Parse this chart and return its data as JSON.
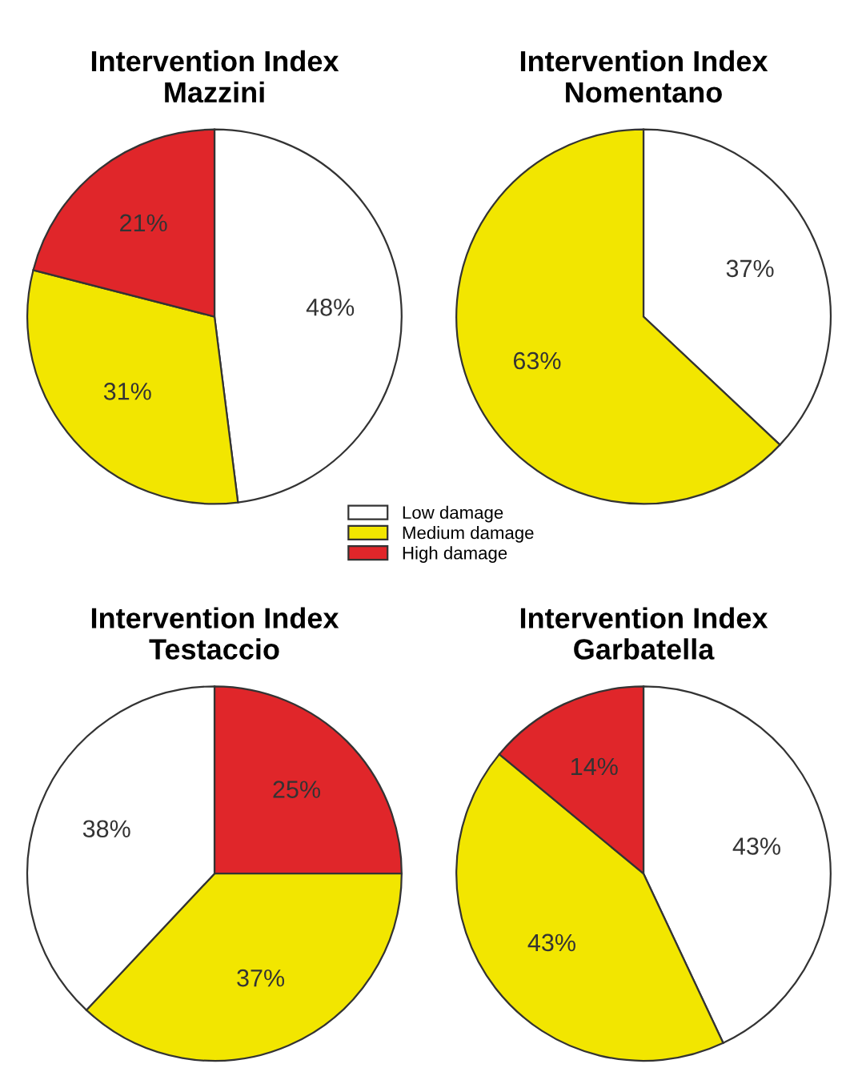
{
  "chart_data": [
    {
      "type": "pie",
      "title": "Intervention Index\nMazzini",
      "categories": [
        "Low damage",
        "Medium damage",
        "High damage"
      ],
      "values": [
        48,
        31,
        21
      ],
      "colors": [
        "#ffffff",
        "#f2e600",
        "#e0262a"
      ],
      "value_labels": [
        "48%",
        "31%",
        "21%"
      ],
      "legend": "bottom right"
    },
    {
      "type": "pie",
      "title": "Intervention Index\nNomentano",
      "categories": [
        null,
        null
      ],
      "values": [
        37,
        63
      ],
      "colors": [
        "#ffffff",
        "#f2e600"
      ],
      "value_labels": [
        "37%",
        "63%"
      ]
    },
    {
      "type": "pie",
      "title": "Intervention Index\nTestaccio",
      "categories": [
        null,
        null,
        null
      ],
      "values": [
        25,
        37,
        38
      ],
      "colors": [
        "#e0262a",
        "#f2e600",
        "#ffffff"
      ],
      "value_labels": [
        "25%",
        "37%",
        "38%"
      ]
    },
    {
      "type": "pie",
      "title": "Intervention Index\nGarbatella",
      "categories": [
        null,
        null,
        null
      ],
      "values": [
        43,
        43,
        14
      ],
      "colors": [
        "#ffffff",
        "#f2e600",
        "#e0262a"
      ],
      "value_labels": [
        "43%",
        "43%",
        "14%"
      ]
    }
  ]
}
